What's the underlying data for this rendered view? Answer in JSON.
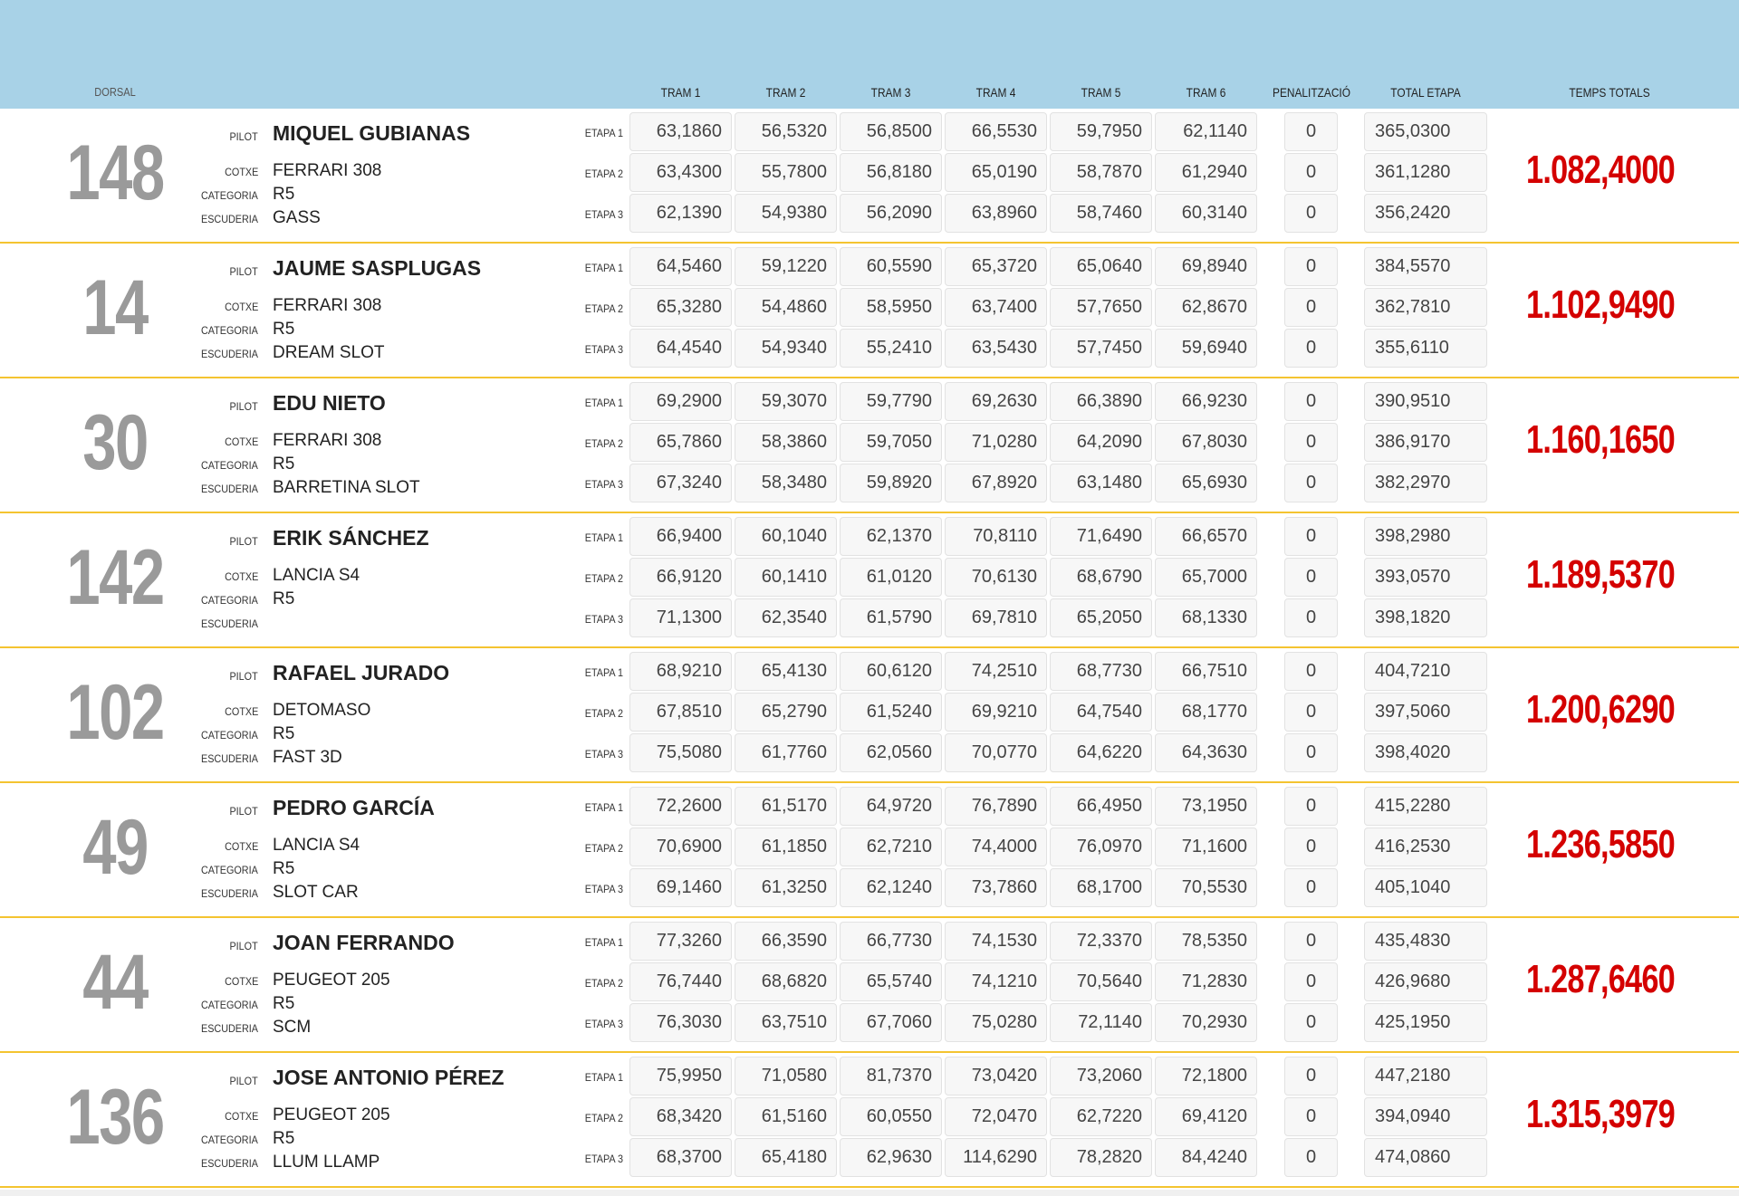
{
  "header": {
    "dorsal": "DORSAL",
    "trams": [
      "TRAM 1",
      "TRAM 2",
      "TRAM 3",
      "TRAM 4",
      "TRAM 5",
      "TRAM 6"
    ],
    "penalitzacio": "PENALITZACIÓ",
    "total_etapa": "TOTAL ETAPA",
    "temps_totals": "TEMPS TOTALS"
  },
  "labels": {
    "pilot": "PILOT",
    "cotxe": "COTXE",
    "categoria": "CATEGORIA",
    "escuderia": "ESCUDERIA",
    "etapes": [
      "ETAPA 1",
      "ETAPA 2",
      "ETAPA 3"
    ]
  },
  "colors": {
    "header_bg": "#a8d2e7",
    "total_red": "#d40000",
    "divider": "#f4c430",
    "dorsal_grey": "#9a9a9a"
  },
  "rows": [
    {
      "dorsal": "148",
      "pilot": "MIQUEL GUBIANAS",
      "cotxe": "FERRARI 308",
      "categoria": "R5",
      "escuderia": "GASS",
      "total": "1.082,4000",
      "etapes": [
        {
          "trams": [
            "63,1860",
            "56,5320",
            "56,8500",
            "66,5530",
            "59,7950",
            "62,1140"
          ],
          "pen": "0",
          "total": "365,0300"
        },
        {
          "trams": [
            "63,4300",
            "55,7800",
            "56,8180",
            "65,0190",
            "58,7870",
            "61,2940"
          ],
          "pen": "0",
          "total": "361,1280"
        },
        {
          "trams": [
            "62,1390",
            "54,9380",
            "56,2090",
            "63,8960",
            "58,7460",
            "60,3140"
          ],
          "pen": "0",
          "total": "356,2420"
        }
      ]
    },
    {
      "dorsal": "14",
      "pilot": "JAUME SASPLUGAS",
      "cotxe": "FERRARI 308",
      "categoria": "R5",
      "escuderia": "DREAM SLOT",
      "total": "1.102,9490",
      "etapes": [
        {
          "trams": [
            "64,5460",
            "59,1220",
            "60,5590",
            "65,3720",
            "65,0640",
            "69,8940"
          ],
          "pen": "0",
          "total": "384,5570"
        },
        {
          "trams": [
            "65,3280",
            "54,4860",
            "58,5950",
            "63,7400",
            "57,7650",
            "62,8670"
          ],
          "pen": "0",
          "total": "362,7810"
        },
        {
          "trams": [
            "64,4540",
            "54,9340",
            "55,2410",
            "63,5430",
            "57,7450",
            "59,6940"
          ],
          "pen": "0",
          "total": "355,6110"
        }
      ]
    },
    {
      "dorsal": "30",
      "pilot": "EDU NIETO",
      "cotxe": "FERRARI 308",
      "categoria": "R5",
      "escuderia": "BARRETINA SLOT",
      "total": "1.160,1650",
      "etapes": [
        {
          "trams": [
            "69,2900",
            "59,3070",
            "59,7790",
            "69,2630",
            "66,3890",
            "66,9230"
          ],
          "pen": "0",
          "total": "390,9510"
        },
        {
          "trams": [
            "65,7860",
            "58,3860",
            "59,7050",
            "71,0280",
            "64,2090",
            "67,8030"
          ],
          "pen": "0",
          "total": "386,9170"
        },
        {
          "trams": [
            "67,3240",
            "58,3480",
            "59,8920",
            "67,8920",
            "63,1480",
            "65,6930"
          ],
          "pen": "0",
          "total": "382,2970"
        }
      ]
    },
    {
      "dorsal": "142",
      "pilot": "ERIK SÁNCHEZ",
      "cotxe": "LANCIA S4",
      "categoria": "R5",
      "escuderia": "",
      "total": "1.189,5370",
      "etapes": [
        {
          "trams": [
            "66,9400",
            "60,1040",
            "62,1370",
            "70,8110",
            "71,6490",
            "66,6570"
          ],
          "pen": "0",
          "total": "398,2980"
        },
        {
          "trams": [
            "66,9120",
            "60,1410",
            "61,0120",
            "70,6130",
            "68,6790",
            "65,7000"
          ],
          "pen": "0",
          "total": "393,0570"
        },
        {
          "trams": [
            "71,1300",
            "62,3540",
            "61,5790",
            "69,7810",
            "65,2050",
            "68,1330"
          ],
          "pen": "0",
          "total": "398,1820"
        }
      ]
    },
    {
      "dorsal": "102",
      "pilot": "RAFAEL JURADO",
      "cotxe": "DETOMASO",
      "categoria": "R5",
      "escuderia": "FAST 3D",
      "total": "1.200,6290",
      "etapes": [
        {
          "trams": [
            "68,9210",
            "65,4130",
            "60,6120",
            "74,2510",
            "68,7730",
            "66,7510"
          ],
          "pen": "0",
          "total": "404,7210"
        },
        {
          "trams": [
            "67,8510",
            "65,2790",
            "61,5240",
            "69,9210",
            "64,7540",
            "68,1770"
          ],
          "pen": "0",
          "total": "397,5060"
        },
        {
          "trams": [
            "75,5080",
            "61,7760",
            "62,0560",
            "70,0770",
            "64,6220",
            "64,3630"
          ],
          "pen": "0",
          "total": "398,4020"
        }
      ]
    },
    {
      "dorsal": "49",
      "pilot": "PEDRO GARCÍA",
      "cotxe": "LANCIA S4",
      "categoria": "R5",
      "escuderia": "SLOT CAR",
      "total": "1.236,5850",
      "etapes": [
        {
          "trams": [
            "72,2600",
            "61,5170",
            "64,9720",
            "76,7890",
            "66,4950",
            "73,1950"
          ],
          "pen": "0",
          "total": "415,2280"
        },
        {
          "trams": [
            "70,6900",
            "61,1850",
            "62,7210",
            "74,4000",
            "76,0970",
            "71,1600"
          ],
          "pen": "0",
          "total": "416,2530"
        },
        {
          "trams": [
            "69,1460",
            "61,3250",
            "62,1240",
            "73,7860",
            "68,1700",
            "70,5530"
          ],
          "pen": "0",
          "total": "405,1040"
        }
      ]
    },
    {
      "dorsal": "44",
      "pilot": "JOAN FERRANDO",
      "cotxe": "PEUGEOT 205",
      "categoria": "R5",
      "escuderia": "SCM",
      "total": "1.287,6460",
      "etapes": [
        {
          "trams": [
            "77,3260",
            "66,3590",
            "66,7730",
            "74,1530",
            "72,3370",
            "78,5350"
          ],
          "pen": "0",
          "total": "435,4830"
        },
        {
          "trams": [
            "76,7440",
            "68,6820",
            "65,5740",
            "74,1210",
            "70,5640",
            "71,2830"
          ],
          "pen": "0",
          "total": "426,9680"
        },
        {
          "trams": [
            "76,3030",
            "63,7510",
            "67,7060",
            "75,0280",
            "72,1140",
            "70,2930"
          ],
          "pen": "0",
          "total": "425,1950"
        }
      ]
    },
    {
      "dorsal": "136",
      "pilot": "JOSE ANTONIO PÉREZ",
      "cotxe": "PEUGEOT 205",
      "categoria": "R5",
      "escuderia": "LLUM LLAMP",
      "total": "1.315,3979",
      "etapes": [
        {
          "trams": [
            "75,9950",
            "71,0580",
            "81,7370",
            "73,0420",
            "73,2060",
            "72,1800"
          ],
          "pen": "0",
          "total": "447,2180"
        },
        {
          "trams": [
            "68,3420",
            "61,5160",
            "60,0550",
            "72,0470",
            "62,7220",
            "69,4120"
          ],
          "pen": "0",
          "total": "394,0940"
        },
        {
          "trams": [
            "68,3700",
            "65,4180",
            "62,9630",
            "114,6290",
            "78,2820",
            "84,4240"
          ],
          "pen": "0",
          "total": "474,0860"
        }
      ]
    }
  ]
}
